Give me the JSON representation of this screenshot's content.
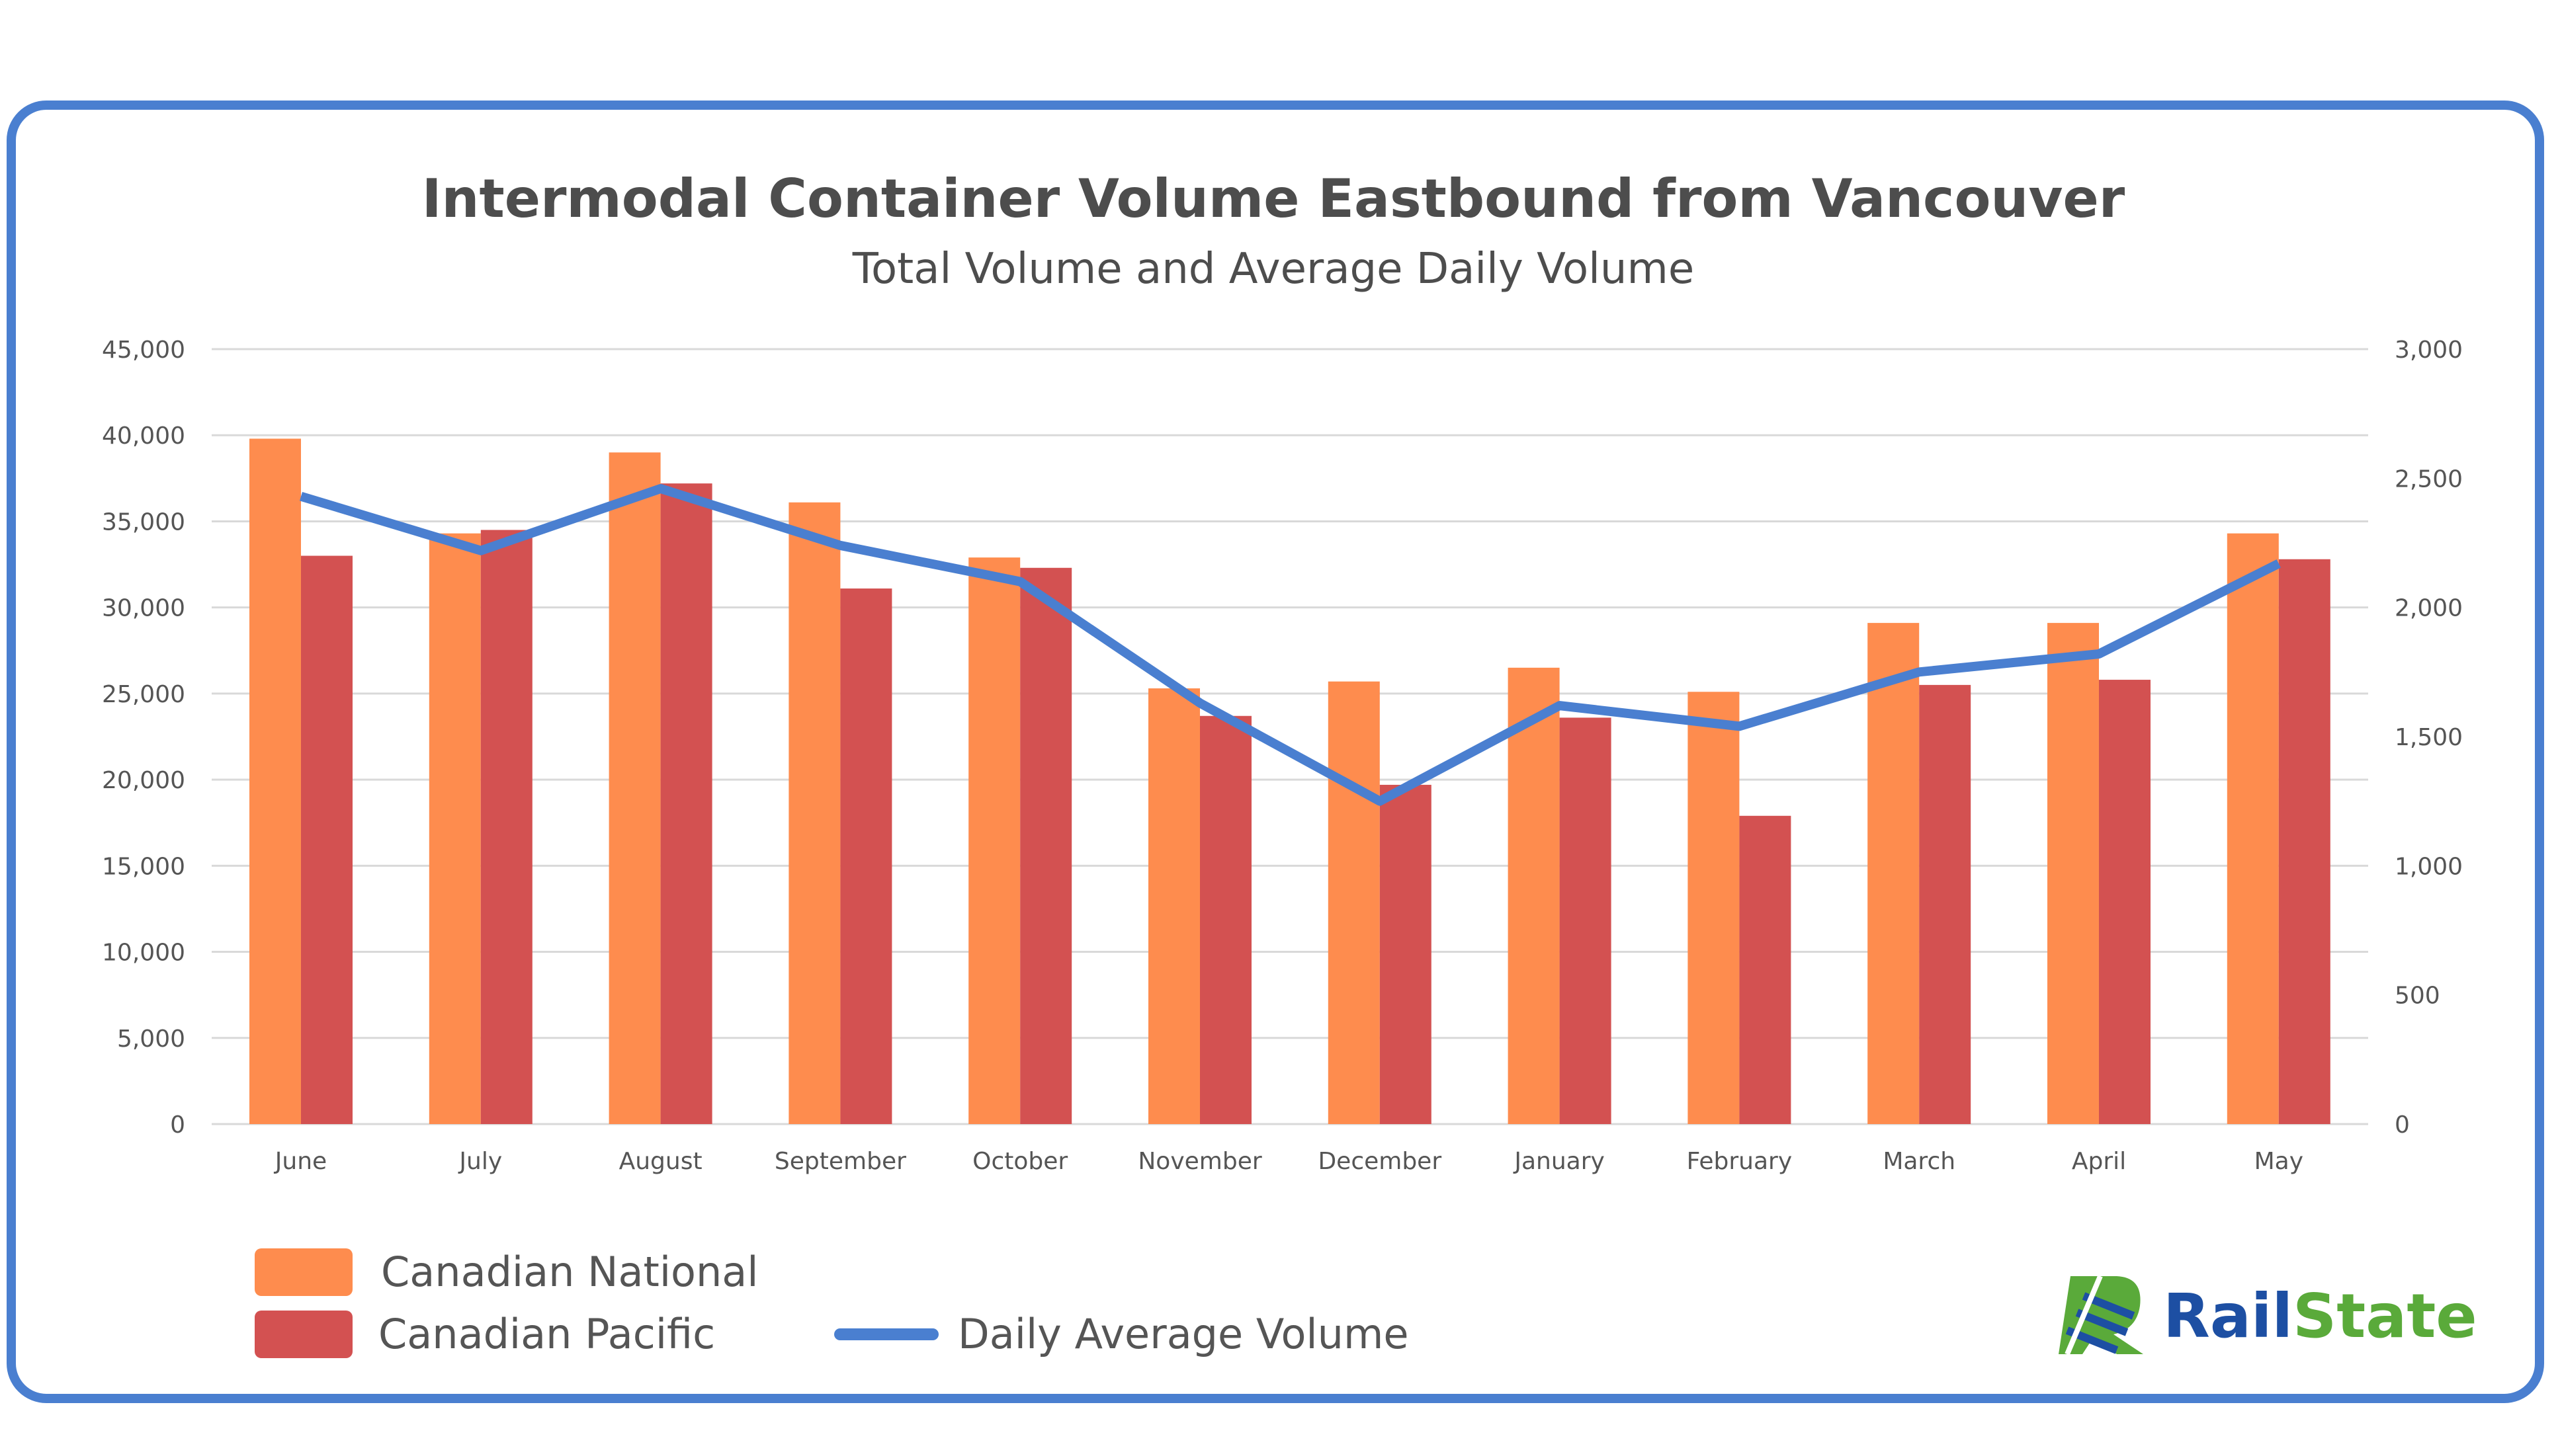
{
  "chart_data": {
    "type": "bar",
    "title": "Intermodal Container Volume Eastbound from Vancouver",
    "subtitle": "Total Volume and Average Daily Volume",
    "categories": [
      "June",
      "July",
      "August",
      "September",
      "October",
      "November",
      "December",
      "January",
      "February",
      "March",
      "April",
      "May"
    ],
    "series": [
      {
        "name": "Canadian National",
        "kind": "bar",
        "axis": "left",
        "color": "#fe8c4e",
        "values": [
          39800,
          34300,
          39000,
          36100,
          32900,
          25300,
          25700,
          26500,
          25100,
          29100,
          29100,
          34300
        ]
      },
      {
        "name": "Canadian Pacific",
        "kind": "bar",
        "axis": "left",
        "color": "#d35151",
        "values": [
          33000,
          34500,
          37200,
          31100,
          32300,
          23700,
          19700,
          23600,
          17900,
          25500,
          25800,
          32800
        ]
      },
      {
        "name": "Daily Average Volume",
        "kind": "line",
        "axis": "right",
        "color": "#4a7fd0",
        "values": [
          2430,
          2220,
          2460,
          2240,
          2100,
          1630,
          1250,
          1620,
          1540,
          1750,
          1820,
          2170
        ]
      }
    ],
    "yleft": {
      "min": 0,
      "max": 45000,
      "ticks": [
        "0",
        "5,000",
        "10,000",
        "15,000",
        "20,000",
        "25,000",
        "30,000",
        "35,000",
        "40,000",
        "45,000"
      ]
    },
    "yright": {
      "min": 0,
      "max": 3000,
      "ticks": [
        "0",
        "500",
        "1,000",
        "1,500",
        "2,000",
        "2,500",
        "3,000"
      ]
    },
    "grid": true,
    "legend": "bottom-left"
  },
  "logo": {
    "text": "RailState",
    "rail_color": "#1d4fa3",
    "state_color": "#5aaa3a"
  }
}
